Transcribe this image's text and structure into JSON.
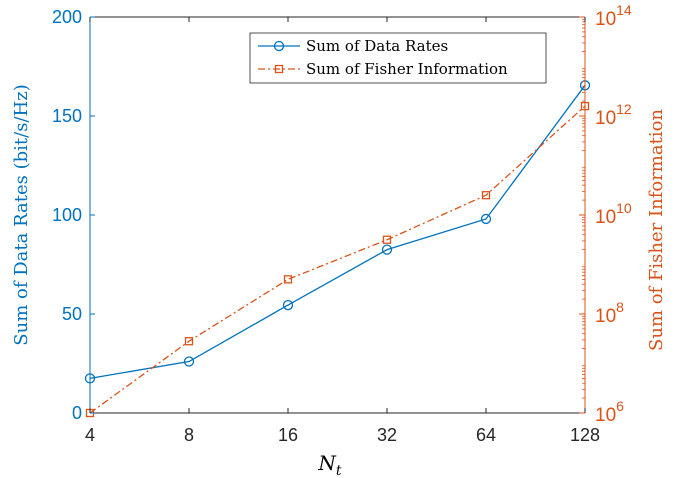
{
  "chart_data": {
    "type": "line",
    "x": [
      4,
      8,
      16,
      32,
      64,
      128
    ],
    "x_tick_labels": [
      "4",
      "8",
      "16",
      "32",
      "64",
      "128"
    ],
    "xlabel_base": "N",
    "xlabel_sub": "t",
    "x_scale": "log2",
    "xlim": [
      4,
      128
    ],
    "left_axis": {
      "label": "Sum of Data Rates (bit/s/Hz)",
      "ylim": [
        0,
        200
      ],
      "ticks": [
        0,
        50,
        100,
        150,
        200
      ],
      "tick_labels": [
        "0",
        "50",
        "100",
        "150",
        "200"
      ],
      "color": "#0072BD"
    },
    "right_axis": {
      "label": "Sum of Fisher Information",
      "scale": "log",
      "ylim_exp": [
        6,
        14
      ],
      "major_exps": [
        6,
        8,
        10,
        12,
        14
      ],
      "tick_bases": [
        "10",
        "10",
        "10",
        "10",
        "10"
      ],
      "tick_sups": [
        "6",
        "8",
        "10",
        "12",
        "14"
      ],
      "color": "#D95319"
    },
    "series": [
      {
        "name": "Sum of Data Rates",
        "axis": "left",
        "color": "#0072BD",
        "marker": "circle",
        "line_style": "solid",
        "values": [
          17.5,
          26,
          54.5,
          82.5,
          98,
          165.5
        ]
      },
      {
        "name": "Sum of Fisher Information",
        "axis": "right",
        "color": "#D95319",
        "marker": "square",
        "line_style": "dash-dot",
        "values_log10": [
          6.0,
          7.45,
          8.7,
          9.5,
          10.4,
          12.2
        ]
      }
    ],
    "grid": false,
    "legend_position": "top-center"
  }
}
